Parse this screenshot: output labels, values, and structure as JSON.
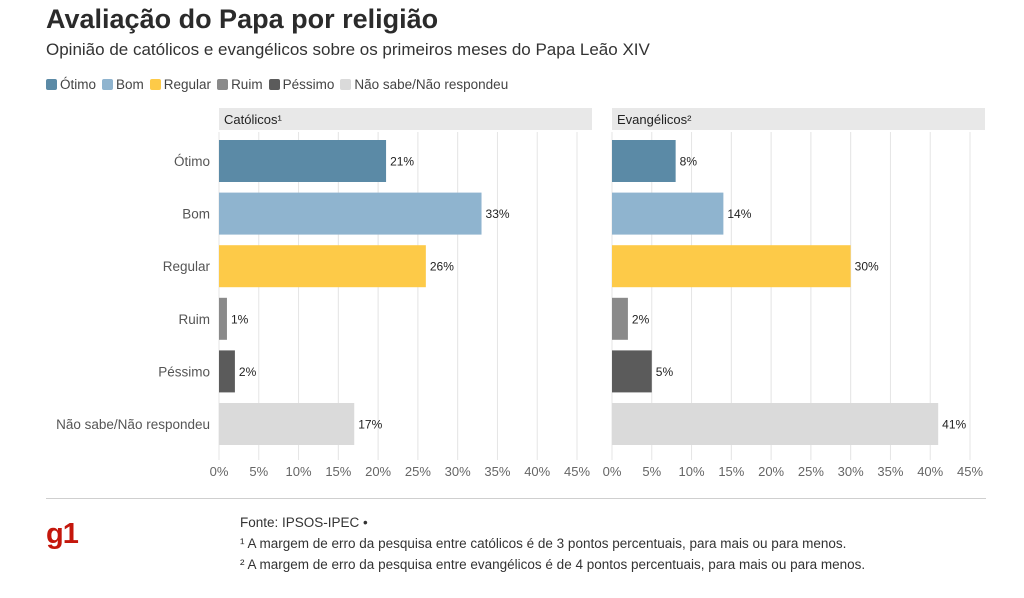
{
  "header": {
    "title": "Avaliação do Papa por religião",
    "subtitle": "Opinião de católicos e evangélicos sobre os primeiros meses do Papa Leão XIV"
  },
  "legend": [
    {
      "label": "Ótimo",
      "color": "#5b8aa6"
    },
    {
      "label": "Bom",
      "color": "#8fb4cf"
    },
    {
      "label": "Regular",
      "color": "#fdca48"
    },
    {
      "label": "Ruim",
      "color": "#8a8a8a"
    },
    {
      "label": "Péssimo",
      "color": "#5b5b5b"
    },
    {
      "label": "Não sabe/Não respondeu",
      "color": "#dadada"
    }
  ],
  "chart_data": {
    "type": "bar",
    "orientation": "horizontal",
    "categories": [
      "Ótimo",
      "Bom",
      "Regular",
      "Ruim",
      "Péssimo",
      "Não sabe/Não respondeu"
    ],
    "colors": [
      "#5b8aa6",
      "#8fb4cf",
      "#fdca48",
      "#8a8a8a",
      "#5b5b5b",
      "#dadada"
    ],
    "xlim": [
      0,
      45
    ],
    "ticks": [
      0,
      5,
      10,
      15,
      20,
      25,
      30,
      35,
      40,
      45
    ],
    "tick_labels": [
      "0%",
      "5%",
      "10%",
      "15%",
      "20%",
      "25%",
      "30%",
      "35%",
      "40%",
      "45%"
    ],
    "grid": true,
    "legend_position": "top-left",
    "panels": [
      {
        "title": "Católicos¹",
        "values": [
          21,
          33,
          26,
          1,
          2,
          17
        ],
        "labels": [
          "21%",
          "33%",
          "26%",
          "1%",
          "2%",
          "17%"
        ]
      },
      {
        "title": "Evangélicos²",
        "values": [
          8,
          14,
          30,
          2,
          5,
          41
        ],
        "labels": [
          "8%",
          "14%",
          "30%",
          "2%",
          "5%",
          "41%"
        ]
      }
    ]
  },
  "footer": {
    "logo": "g1",
    "source": "Fonte: IPSOS-IPEC •",
    "note1": "¹ A margem de erro da pesquisa entre católicos é de 3 pontos percentuais, para mais ou para menos.",
    "note2": "² A margem de erro da pesquisa entre evangélicos é de 4 pontos percentuais, para mais ou para menos."
  }
}
